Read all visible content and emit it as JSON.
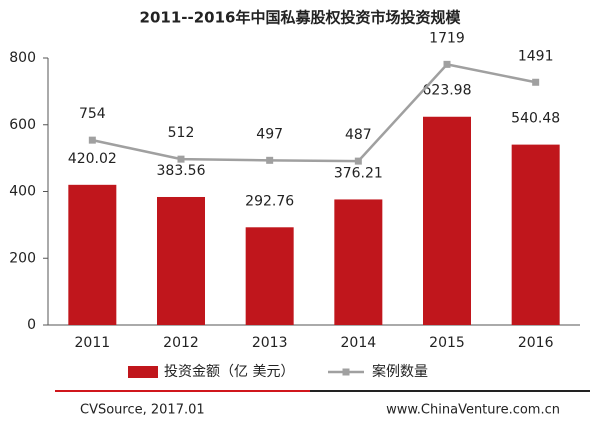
{
  "chart_data": {
    "type": "bar_line",
    "title": "2011--2016年中国私募股权投资市场投资规模",
    "categories": [
      "2011",
      "2012",
      "2013",
      "2014",
      "2015",
      "2016"
    ],
    "series": [
      {
        "name": "投资金额（亿 美元）",
        "type": "bar",
        "color": "#c0161c",
        "values": [
          420.02,
          383.56,
          292.76,
          376.21,
          623.98,
          540.48
        ]
      },
      {
        "name": "案例数量",
        "type": "line",
        "color": "#a0a0a0",
        "axis": "y2",
        "values": [
          754,
          512,
          497,
          487,
          1719,
          1491
        ]
      }
    ],
    "ylim": [
      0,
      800
    ],
    "yticks": [
      0,
      200,
      400,
      600,
      800
    ],
    "y2lim": [
      -1600,
      1800
    ],
    "footer": {
      "source": "CVSource, 2017.01",
      "website": "www.ChinaVenture.com.cn"
    }
  }
}
